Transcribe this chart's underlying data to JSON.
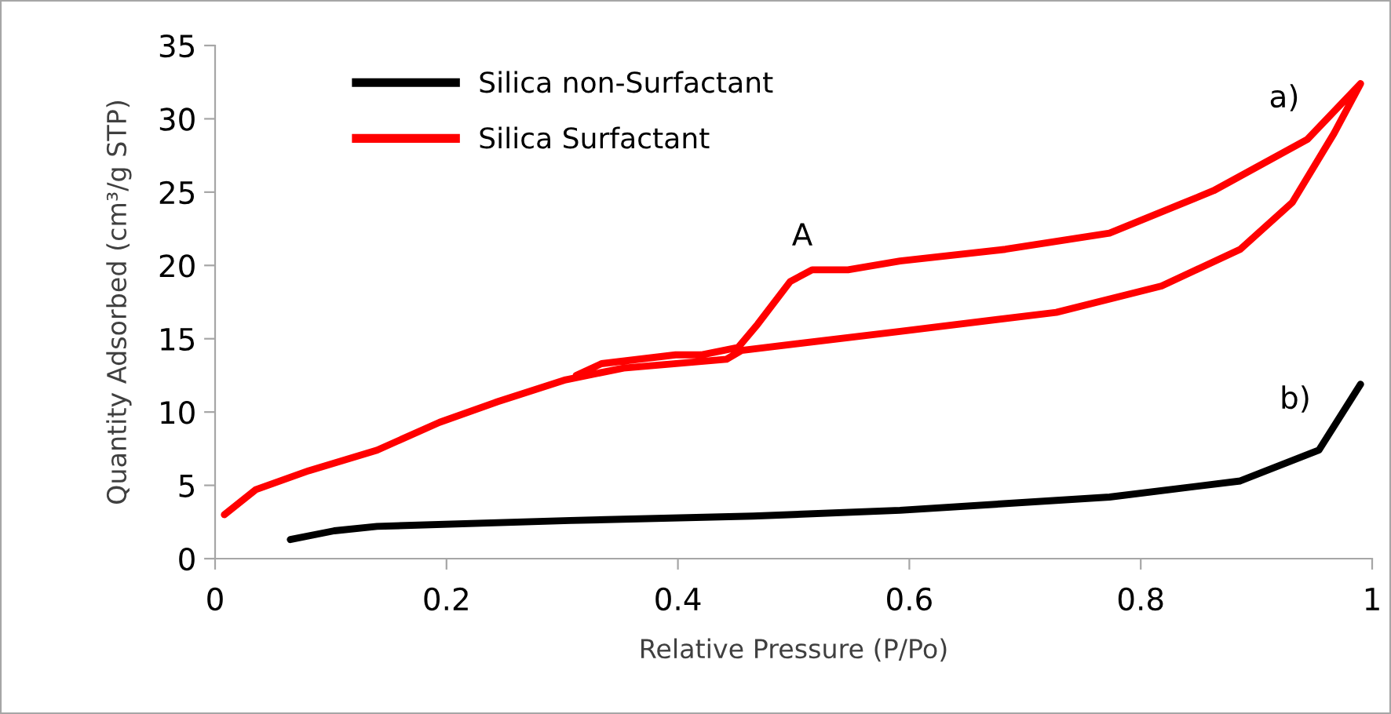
{
  "chart_data": {
    "type": "line",
    "xlabel": "Relative Pressure (P/Po)",
    "ylabel": "Quantity Adsorbed (cm³/g STP)",
    "xlim": [
      0,
      1
    ],
    "ylim": [
      0,
      35
    ],
    "xticks": [
      0,
      0.2,
      0.4,
      0.6,
      0.8,
      1
    ],
    "yticks": [
      0,
      5,
      10,
      15,
      20,
      25,
      30,
      35
    ],
    "grid": false,
    "legend": "top left",
    "marker": "none",
    "line_style": "solid",
    "series": [
      {
        "name": "Silica non-Surfactant",
        "color": "#000000",
        "x": [
          0.065,
          0.103,
          0.14,
          0.307,
          0.465,
          0.592,
          0.773,
          0.886,
          0.954,
          0.99
        ],
        "values": [
          1.3,
          1.9,
          2.2,
          2.6,
          2.9,
          3.3,
          4.2,
          5.3,
          7.4,
          11.9
        ]
      },
      {
        "name": "Silica Surfactant",
        "color": "#ff0000",
        "x": [
          0.008,
          0.035,
          0.081,
          0.14,
          0.194,
          0.244,
          0.303,
          0.353,
          0.442,
          0.455,
          0.592,
          0.727,
          0.818,
          0.886,
          0.931,
          0.967,
          0.99,
          0.944,
          0.863,
          0.773,
          0.683,
          0.592,
          0.547,
          0.516,
          0.497,
          0.469,
          0.452,
          0.42,
          0.398,
          0.334,
          0.312
        ],
        "values": [
          3.0,
          4.7,
          6.0,
          7.4,
          9.3,
          10.7,
          12.2,
          13.0,
          13.6,
          14.2,
          15.5,
          16.8,
          18.6,
          21.1,
          24.3,
          29.0,
          32.4,
          28.6,
          25.1,
          22.2,
          21.1,
          20.3,
          19.7,
          19.7,
          18.9,
          16.0,
          14.4,
          13.9,
          13.9,
          13.3,
          12.5
        ]
      }
    ],
    "annotations": [
      "a)",
      "A",
      "b)"
    ]
  }
}
